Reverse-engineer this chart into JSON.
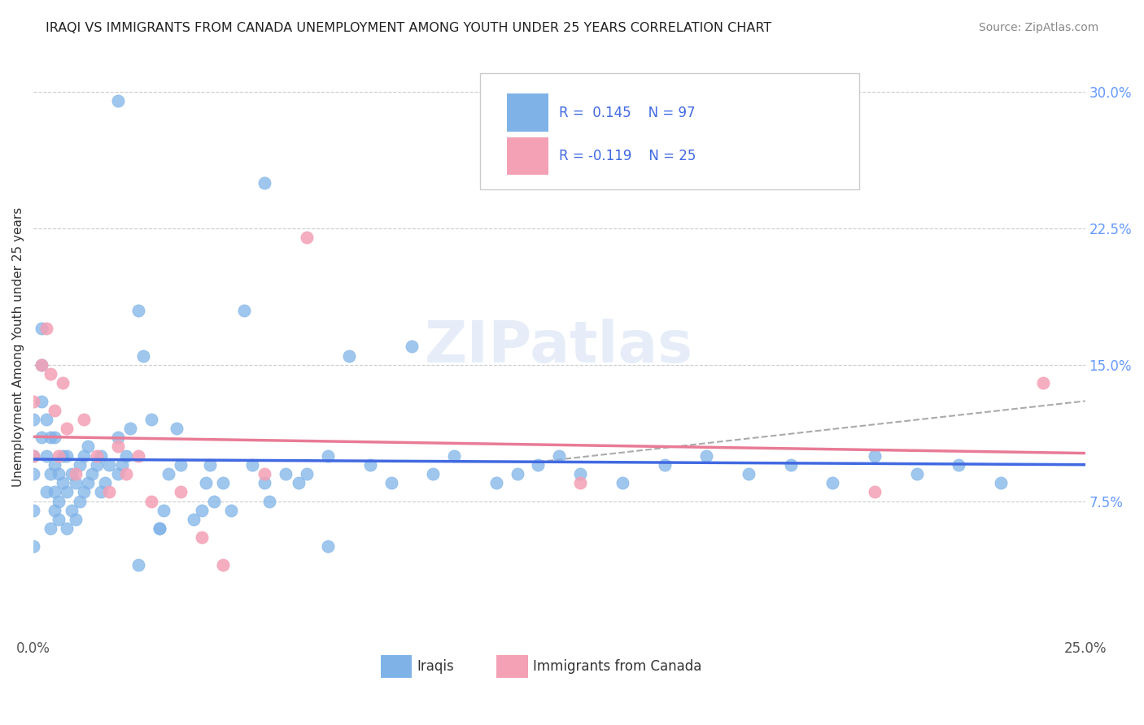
{
  "title": "IRAQI VS IMMIGRANTS FROM CANADA UNEMPLOYMENT AMONG YOUTH UNDER 25 YEARS CORRELATION CHART",
  "source": "Source: ZipAtlas.com",
  "xlabel": "",
  "ylabel": "Unemployment Among Youth under 25 years",
  "xmin": 0.0,
  "xmax": 0.25,
  "ymin": 0.0,
  "ymax": 0.32,
  "yticks": [
    0.0,
    0.075,
    0.15,
    0.225,
    0.3
  ],
  "ytick_labels": [
    "",
    "7.5%",
    "15.0%",
    "22.5%",
    "30.0%"
  ],
  "xticks": [
    0.0,
    0.05,
    0.1,
    0.15,
    0.2,
    0.25
  ],
  "xtick_labels": [
    "0.0%",
    "",
    "",
    "",
    "",
    "25.0%"
  ],
  "iraqis_R": 0.145,
  "iraqis_N": 97,
  "canada_R": -0.119,
  "canada_N": 25,
  "iraqis_color": "#7FB3E8",
  "canada_color": "#F4A0B5",
  "trend_iraqis_color": "#4169E1",
  "trend_canada_color": "#E87B96",
  "trend_ext_color": "#AAAAAA",
  "watermark": "ZIPatlas",
  "iraqis_x": [
    0.0,
    0.0,
    0.0,
    0.0,
    0.0,
    0.002,
    0.002,
    0.002,
    0.002,
    0.003,
    0.003,
    0.003,
    0.004,
    0.004,
    0.004,
    0.005,
    0.005,
    0.005,
    0.005,
    0.006,
    0.006,
    0.006,
    0.007,
    0.007,
    0.008,
    0.008,
    0.008,
    0.009,
    0.009,
    0.01,
    0.01,
    0.011,
    0.011,
    0.012,
    0.012,
    0.013,
    0.013,
    0.014,
    0.015,
    0.016,
    0.016,
    0.017,
    0.018,
    0.02,
    0.02,
    0.021,
    0.022,
    0.023,
    0.025,
    0.026,
    0.028,
    0.03,
    0.031,
    0.032,
    0.034,
    0.035,
    0.038,
    0.04,
    0.041,
    0.042,
    0.043,
    0.045,
    0.047,
    0.05,
    0.052,
    0.055,
    0.056,
    0.06,
    0.063,
    0.065,
    0.07,
    0.075,
    0.08,
    0.085,
    0.09,
    0.095,
    0.1,
    0.11,
    0.115,
    0.12,
    0.125,
    0.13,
    0.14,
    0.15,
    0.16,
    0.17,
    0.18,
    0.19,
    0.2,
    0.21,
    0.22,
    0.23,
    0.02,
    0.025,
    0.03,
    0.055,
    0.07
  ],
  "iraqis_y": [
    0.05,
    0.07,
    0.09,
    0.1,
    0.12,
    0.11,
    0.13,
    0.15,
    0.17,
    0.08,
    0.1,
    0.12,
    0.06,
    0.09,
    0.11,
    0.07,
    0.08,
    0.095,
    0.11,
    0.065,
    0.075,
    0.09,
    0.085,
    0.1,
    0.06,
    0.08,
    0.1,
    0.07,
    0.09,
    0.065,
    0.085,
    0.075,
    0.095,
    0.08,
    0.1,
    0.085,
    0.105,
    0.09,
    0.095,
    0.08,
    0.1,
    0.085,
    0.095,
    0.09,
    0.11,
    0.095,
    0.1,
    0.115,
    0.18,
    0.155,
    0.12,
    0.06,
    0.07,
    0.09,
    0.115,
    0.095,
    0.065,
    0.07,
    0.085,
    0.095,
    0.075,
    0.085,
    0.07,
    0.18,
    0.095,
    0.085,
    0.075,
    0.09,
    0.085,
    0.09,
    0.1,
    0.155,
    0.095,
    0.085,
    0.16,
    0.09,
    0.1,
    0.085,
    0.09,
    0.095,
    0.1,
    0.09,
    0.085,
    0.095,
    0.1,
    0.09,
    0.095,
    0.085,
    0.1,
    0.09,
    0.095,
    0.085,
    0.295,
    0.04,
    0.06,
    0.25,
    0.05
  ],
  "canada_x": [
    0.0,
    0.0,
    0.002,
    0.003,
    0.004,
    0.005,
    0.006,
    0.007,
    0.008,
    0.01,
    0.012,
    0.015,
    0.018,
    0.02,
    0.022,
    0.025,
    0.028,
    0.035,
    0.04,
    0.045,
    0.055,
    0.065,
    0.13,
    0.2,
    0.24
  ],
  "canada_y": [
    0.1,
    0.13,
    0.15,
    0.17,
    0.145,
    0.125,
    0.1,
    0.14,
    0.115,
    0.09,
    0.12,
    0.1,
    0.08,
    0.105,
    0.09,
    0.1,
    0.075,
    0.08,
    0.055,
    0.04,
    0.09,
    0.22,
    0.085,
    0.08,
    0.14
  ]
}
